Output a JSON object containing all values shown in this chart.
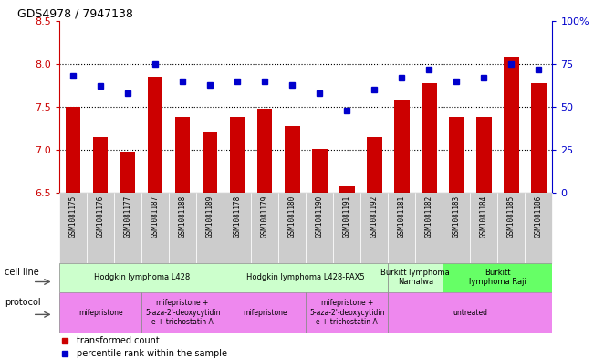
{
  "title": "GDS4978 / 7947138",
  "samples": [
    "GSM1081175",
    "GSM1081176",
    "GSM1081177",
    "GSM1081187",
    "GSM1081188",
    "GSM1081189",
    "GSM1081178",
    "GSM1081179",
    "GSM1081180",
    "GSM1081190",
    "GSM1081191",
    "GSM1081192",
    "GSM1081181",
    "GSM1081182",
    "GSM1081183",
    "GSM1081184",
    "GSM1081185",
    "GSM1081186"
  ],
  "red_values": [
    7.5,
    7.15,
    6.98,
    7.85,
    7.38,
    7.2,
    7.38,
    7.48,
    7.28,
    7.01,
    6.58,
    7.15,
    7.58,
    7.78,
    7.38,
    7.38,
    8.08,
    7.78
  ],
  "blue_values": [
    68,
    62,
    58,
    75,
    65,
    63,
    65,
    65,
    63,
    58,
    48,
    60,
    67,
    72,
    65,
    67,
    75,
    72
  ],
  "ylim_left": [
    6.5,
    8.5
  ],
  "ylim_right": [
    0,
    100
  ],
  "yticks_left": [
    6.5,
    7.0,
    7.5,
    8.0,
    8.5
  ],
  "yticks_right": [
    0,
    25,
    50,
    75,
    100
  ],
  "ytick_labels_right": [
    "0",
    "25",
    "50",
    "75",
    "100%"
  ],
  "hlines": [
    7.0,
    7.5,
    8.0
  ],
  "bar_color": "#cc0000",
  "dot_color": "#0000cc",
  "cell_line_groups": [
    {
      "label": "Hodgkin lymphoma L428",
      "start": 0,
      "end": 5,
      "color": "#ccffcc"
    },
    {
      "label": "Hodgkin lymphoma L428-PAX5",
      "start": 6,
      "end": 11,
      "color": "#ccffcc"
    },
    {
      "label": "Burkitt lymphoma\nNamalwa",
      "start": 12,
      "end": 13,
      "color": "#ccffcc"
    },
    {
      "label": "Burkitt\nlymphoma Raji",
      "start": 14,
      "end": 17,
      "color": "#66ff66"
    }
  ],
  "protocol_groups": [
    {
      "label": "mifepristone",
      "start": 0,
      "end": 2,
      "color": "#ee88ee"
    },
    {
      "label": "mifepristone +\n5-aza-2'-deoxycytidin\ne + trichostatin A",
      "start": 3,
      "end": 5,
      "color": "#ee88ee"
    },
    {
      "label": "mifepristone",
      "start": 6,
      "end": 8,
      "color": "#ee88ee"
    },
    {
      "label": "mifepristone +\n5-aza-2'-deoxycytidin\ne + trichostatin A",
      "start": 9,
      "end": 11,
      "color": "#ee88ee"
    },
    {
      "label": "untreated",
      "start": 12,
      "end": 17,
      "color": "#ee88ee"
    }
  ],
  "legend_red": "transformed count",
  "legend_blue": "percentile rank within the sample",
  "cell_line_row_label": "cell line",
  "protocol_row_label": "protocol",
  "bg_color": "#ffffff",
  "axis_left_color": "#cc0000",
  "axis_right_color": "#0000cc",
  "label_bg": "#cccccc",
  "label_divider": "#aaaaaa"
}
